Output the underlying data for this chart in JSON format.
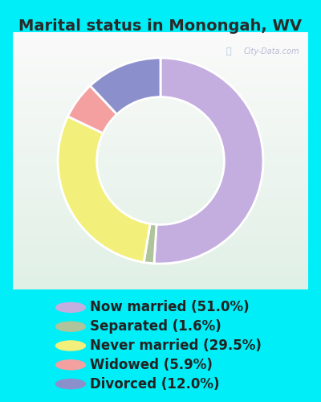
{
  "title": "Marital status in Monongah, WV",
  "slices": [
    51.0,
    1.6,
    29.5,
    5.9,
    12.0
  ],
  "labels": [
    "Now married (51.0%)",
    "Separated (1.6%)",
    "Never married (29.5%)",
    "Widowed (5.9%)",
    "Divorced (12.0%)"
  ],
  "colors": [
    "#c4aee0",
    "#afc49a",
    "#f2f07a",
    "#f4a0a0",
    "#8b8fcc"
  ],
  "bg_cyan": "#00eef8",
  "chart_bg_color": "#e8f5ee",
  "title_fontsize": 14,
  "legend_fontsize": 12,
  "donut_width": 0.38,
  "start_angle": 90
}
